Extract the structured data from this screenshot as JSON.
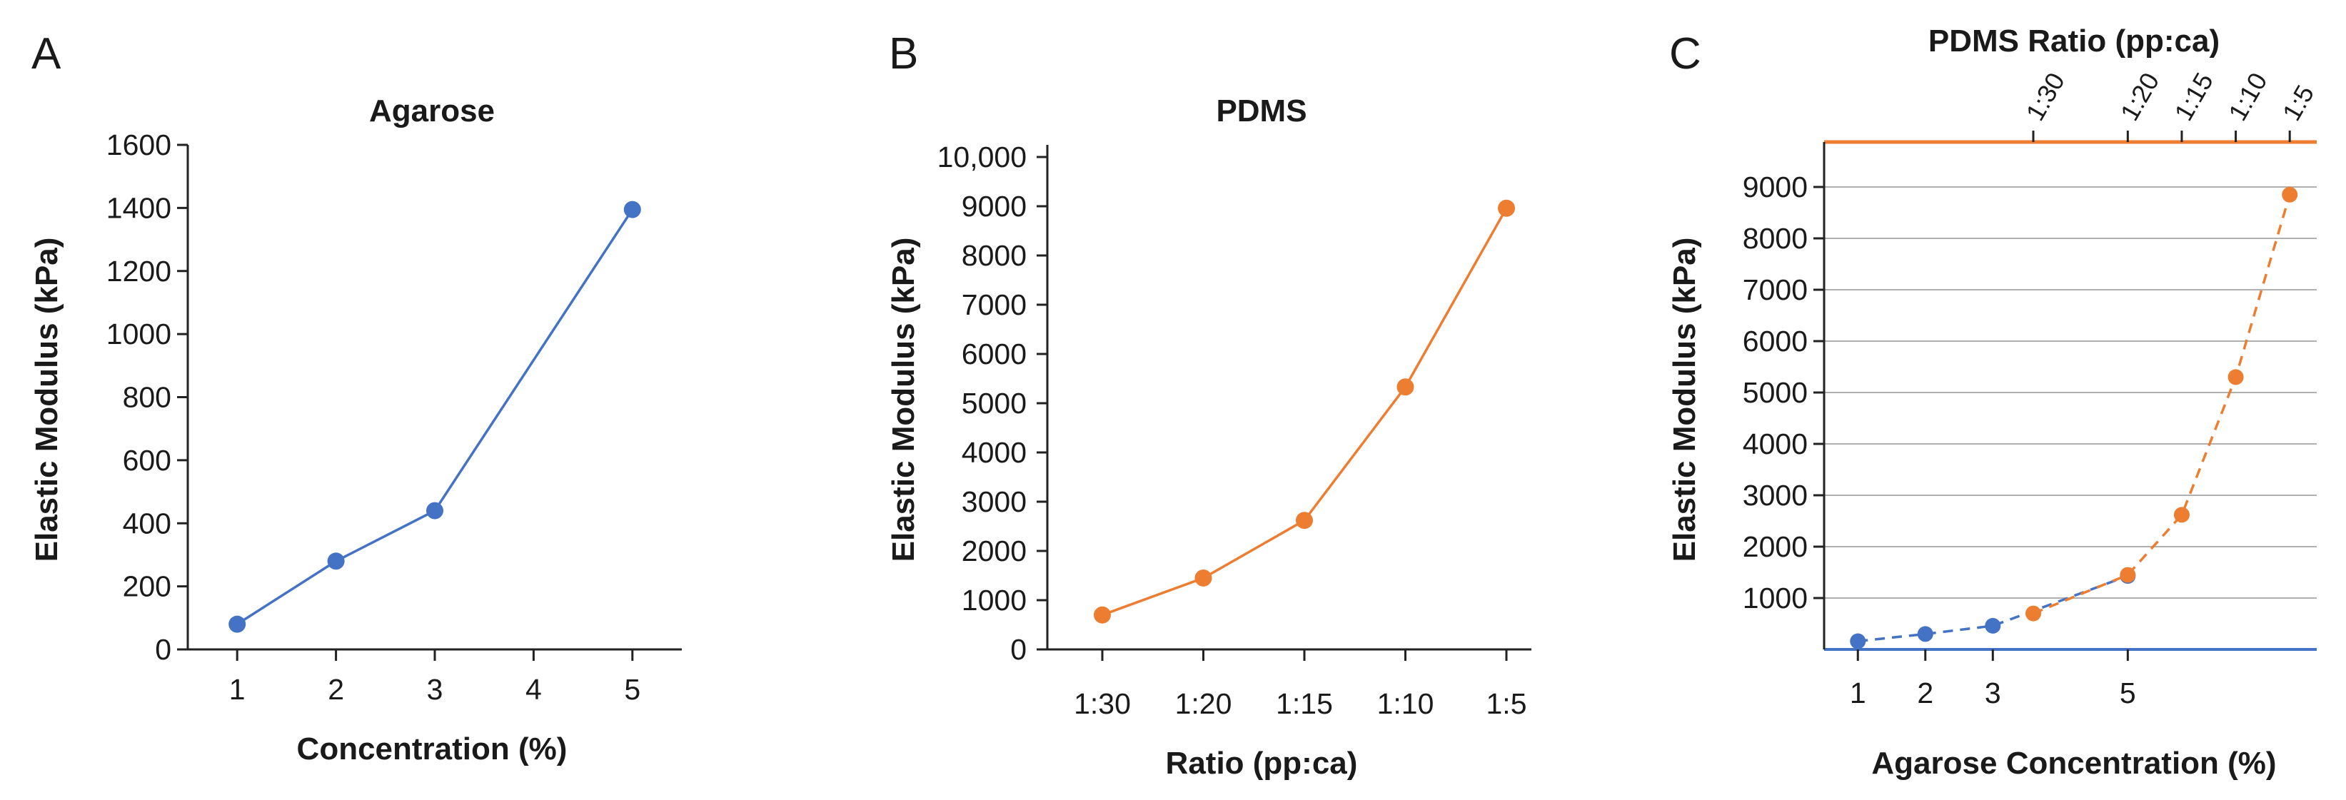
{
  "figure": {
    "panel_letters": [
      "A",
      "B",
      "C"
    ]
  },
  "chart_data": [
    {
      "panel": "A",
      "type": "line",
      "title": "Agarose",
      "xlabel": "Concentration (%)",
      "ylabel": "Elastic Modulus (kPa)",
      "xlim": [
        0.5,
        5.5
      ],
      "ylim": [
        0,
        1600
      ],
      "x_ticks": [
        1,
        2,
        3,
        4,
        5
      ],
      "y_ticks": [
        0,
        200,
        400,
        600,
        800,
        1000,
        1200,
        1400,
        1600
      ],
      "y_tick_labels": [
        "0",
        "200",
        "400",
        "600",
        "800",
        "1000",
        "1200",
        "1400",
        "1600"
      ],
      "color": "#4472C4",
      "series": [
        {
          "name": "Agarose",
          "x": [
            1,
            2,
            3,
            5
          ],
          "y": [
            80,
            280,
            440,
            1395
          ]
        }
      ]
    },
    {
      "panel": "B",
      "type": "line",
      "title": "PDMS",
      "xlabel": "Ratio (pp:ca)",
      "ylabel": "Elastic Modulus (kPa)",
      "categories": [
        "1:30",
        "1:20",
        "1:15",
        "1:10",
        "1:5"
      ],
      "ylim": [
        0,
        10000
      ],
      "y_ticks": [
        0,
        1000,
        2000,
        3000,
        4000,
        5000,
        6000,
        7000,
        8000,
        9000,
        10000
      ],
      "y_tick_labels": [
        "0",
        "1000",
        "2000",
        "3000",
        "4000",
        "5000",
        "6000",
        "7000",
        "8000",
        "9000",
        "10,000"
      ],
      "color": "#ED7D31",
      "series": [
        {
          "name": "PDMS",
          "values": [
            700,
            1450,
            2620,
            5330,
            8960
          ]
        }
      ]
    },
    {
      "panel": "C",
      "type": "line",
      "title": "PDMS Ratio (pp:ca)",
      "xlabel": "Agarose Concentration (%)",
      "ylabel": "Elastic Modulus (kPa)",
      "grid": true,
      "xlim": [
        0.5,
        7.8
      ],
      "ylim": [
        0,
        10000
      ],
      "bottom_x_ticks": [
        1,
        2,
        3,
        5
      ],
      "top_x_ticks": [
        {
          "label": "1:30",
          "x": 3.6
        },
        {
          "label": "1:20",
          "x": 5
        },
        {
          "label": "1:15",
          "x": 5.8
        },
        {
          "label": "1:10",
          "x": 6.6
        },
        {
          "label": "1:5",
          "x": 7.4
        }
      ],
      "y_ticks": [
        1000,
        2000,
        3000,
        4000,
        5000,
        6000,
        7000,
        8000,
        9000
      ],
      "y_tick_labels": [
        "1000",
        "2000",
        "3000",
        "4000",
        "5000",
        "6000",
        "7000",
        "8000",
        "9000"
      ],
      "series": [
        {
          "name": "Agarose",
          "axis": "bottom",
          "color": "#4472C4",
          "style": "dashed",
          "x": [
            1,
            2,
            3,
            5
          ],
          "y": [
            160,
            300,
            460,
            1430
          ]
        },
        {
          "name": "PDMS",
          "axis": "top",
          "color": "#ED7D31",
          "style": "dashed",
          "x": [
            3.6,
            5,
            5.8,
            6.6,
            7.4
          ],
          "y": [
            700,
            1450,
            2620,
            5300,
            8850
          ]
        }
      ]
    }
  ]
}
